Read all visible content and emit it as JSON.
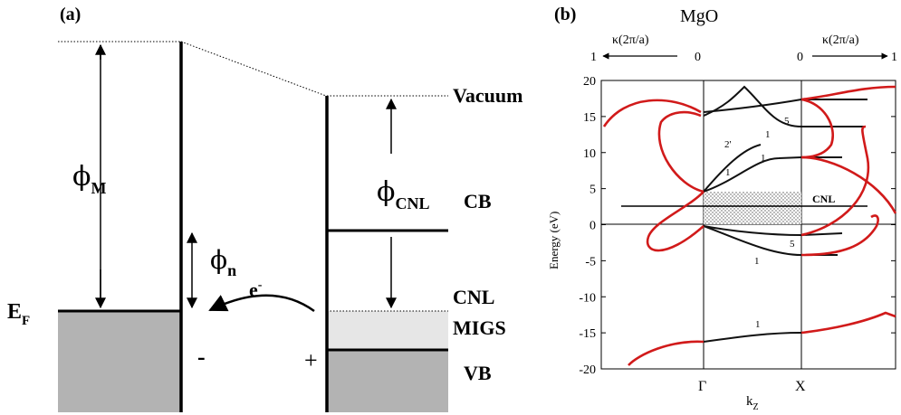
{
  "panel_a": {
    "label": "(a)",
    "phi_m": {
      "sym": "ϕ",
      "sub": "M"
    },
    "phi_n": {
      "sym": "ϕ",
      "sub": "n"
    },
    "phi_cnl": {
      "sym": "ϕ",
      "sub": "CNL"
    },
    "e_f": {
      "main": "E",
      "sub": "F"
    },
    "electron": {
      "main": "e",
      "sup": "-"
    },
    "minus": "-",
    "plus": "+",
    "vacuum": "Vacuum",
    "cb": "CB",
    "cnl": "CNL",
    "migs": "MIGS",
    "vb": "VB",
    "colors": {
      "metal_fill": "#b3b3b3",
      "migs_fill": "#e6e6e6"
    }
  },
  "panel_b": {
    "label": "(b)",
    "title": "MgO",
    "kappa_left": "κ(2π/a)",
    "kappa_right": "κ(2π/a)",
    "kappa_left_ticks": [
      "1",
      "0"
    ],
    "kappa_right_ticks": [
      "0",
      "1"
    ],
    "ylabel": "Energy (eV)",
    "xlabel": {
      "main": "k",
      "sub": "Z"
    },
    "x_points": [
      "Γ",
      "X"
    ],
    "cnl_label": "CNL",
    "band_labels": [
      "5",
      "1",
      "2'",
      "1",
      "1",
      "5",
      "1"
    ],
    "colors": {
      "complex_bands": "#d11a1a",
      "real_bands": "#111111"
    },
    "chart_data": {
      "type": "line",
      "ylabel": "Energy (eV)",
      "ylim": [
        -20,
        20
      ],
      "yticks": [
        20,
        15,
        10,
        5,
        0,
        -5,
        -10,
        -15,
        -20
      ],
      "cnl_energy": 2.5,
      "gap_shading": [
        0,
        4.5
      ]
    }
  }
}
